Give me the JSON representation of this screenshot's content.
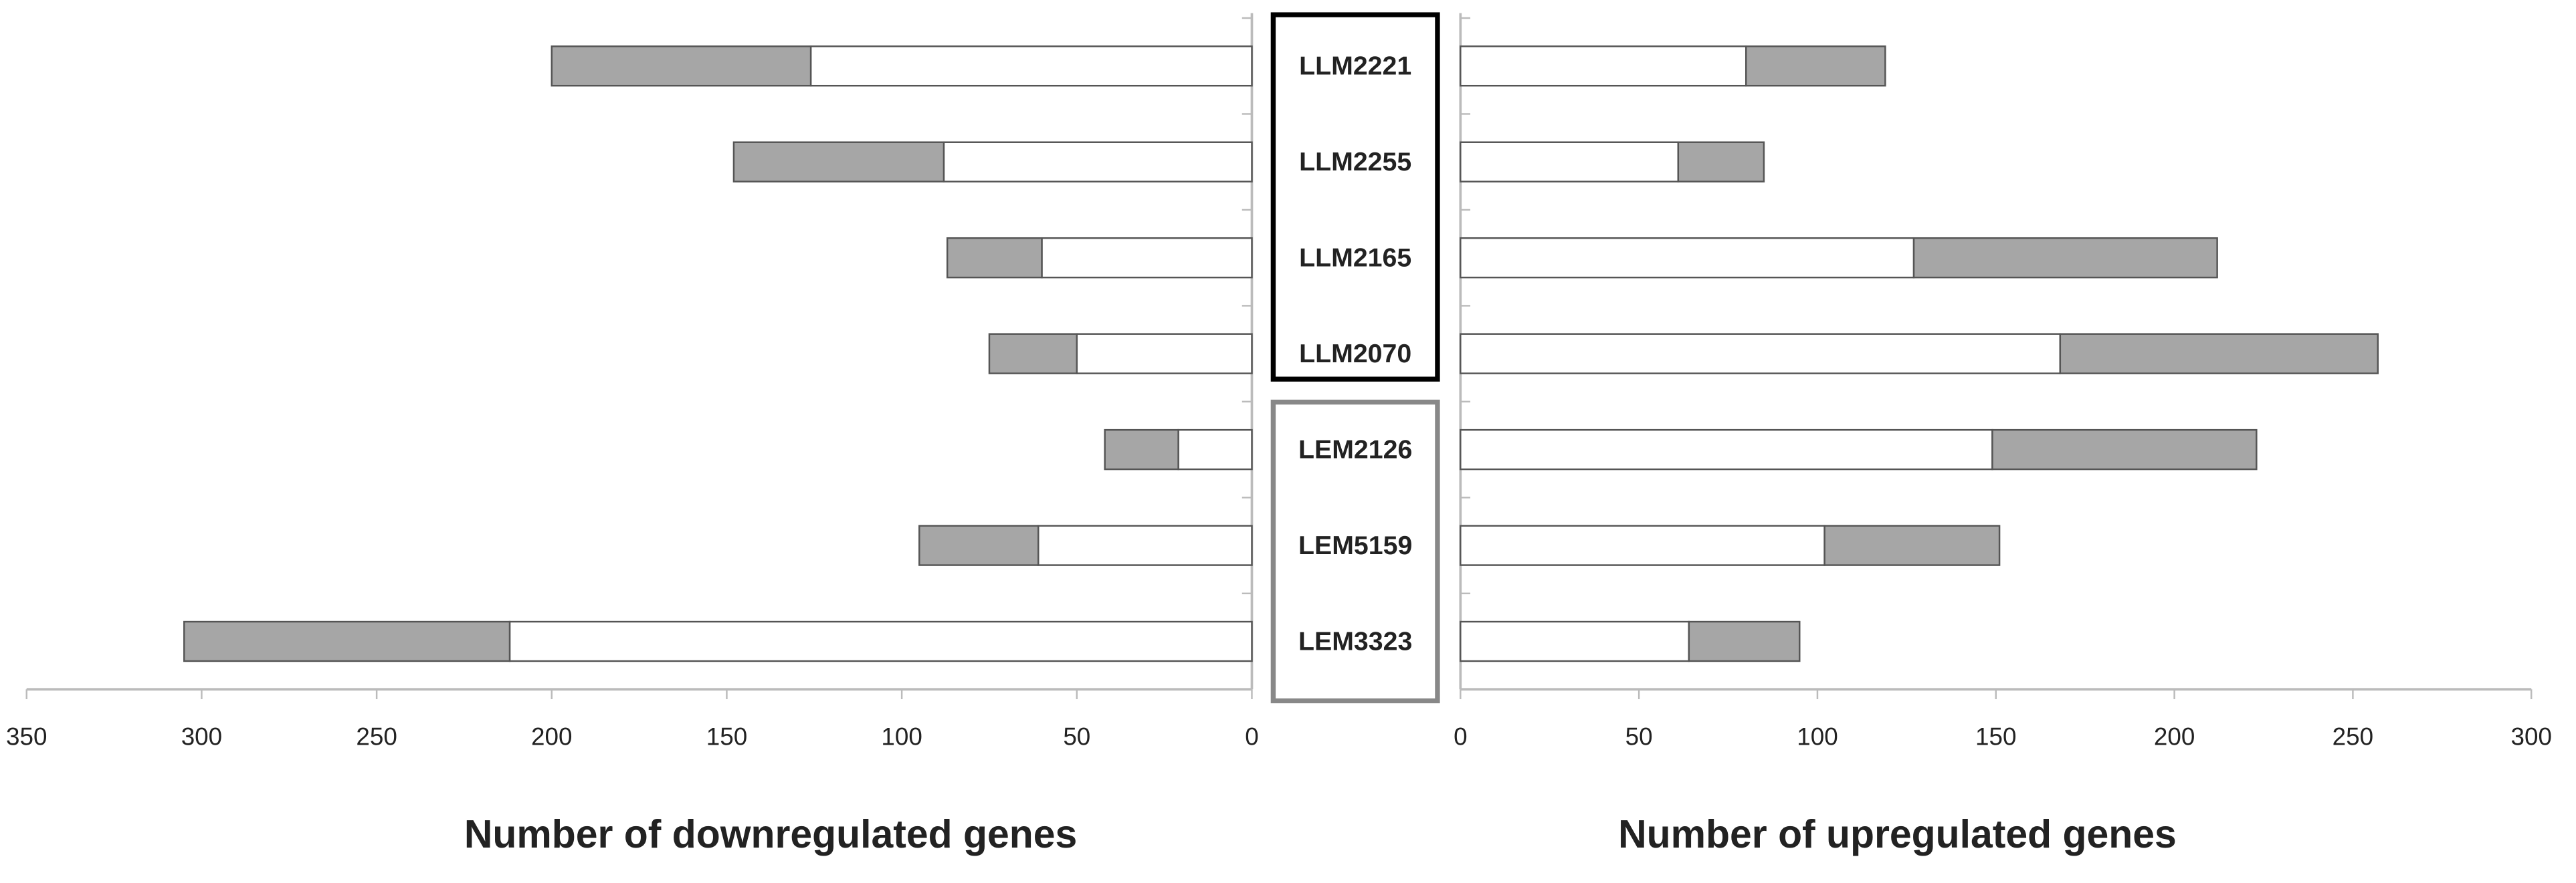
{
  "chart_data": [
    {
      "type": "bar",
      "orientation": "horizontal",
      "xlabel": "Number of downregulated genes",
      "categories": [
        "LLM2221",
        "LLM2255",
        "LLM2165",
        "LLM2070",
        "LEM2126",
        "LEM5159",
        "LEM3323"
      ],
      "series": [
        {
          "color": "#ffffff",
          "values": [
            126,
            88,
            60,
            50,
            21,
            61,
            212
          ]
        },
        {
          "color": "#a6a6a6",
          "values": [
            74,
            60,
            27,
            25,
            21,
            34,
            93
          ]
        }
      ],
      "xlim": [
        350,
        0
      ],
      "xticks": [
        350,
        300,
        250,
        200,
        150,
        100,
        50,
        0
      ]
    },
    {
      "type": "bar",
      "orientation": "horizontal",
      "xlabel": "Number of upregulated genes",
      "series": [
        {
          "color": "#ffffff",
          "values": [
            80,
            61,
            127,
            168,
            149,
            102,
            64
          ]
        },
        {
          "color": "#a6a6a6",
          "values": [
            39,
            24,
            85,
            89,
            74,
            49,
            31
          ]
        }
      ],
      "xlim": [
        0,
        300
      ],
      "xticks": [
        0,
        50,
        100,
        150,
        200,
        250,
        300
      ]
    }
  ]
}
